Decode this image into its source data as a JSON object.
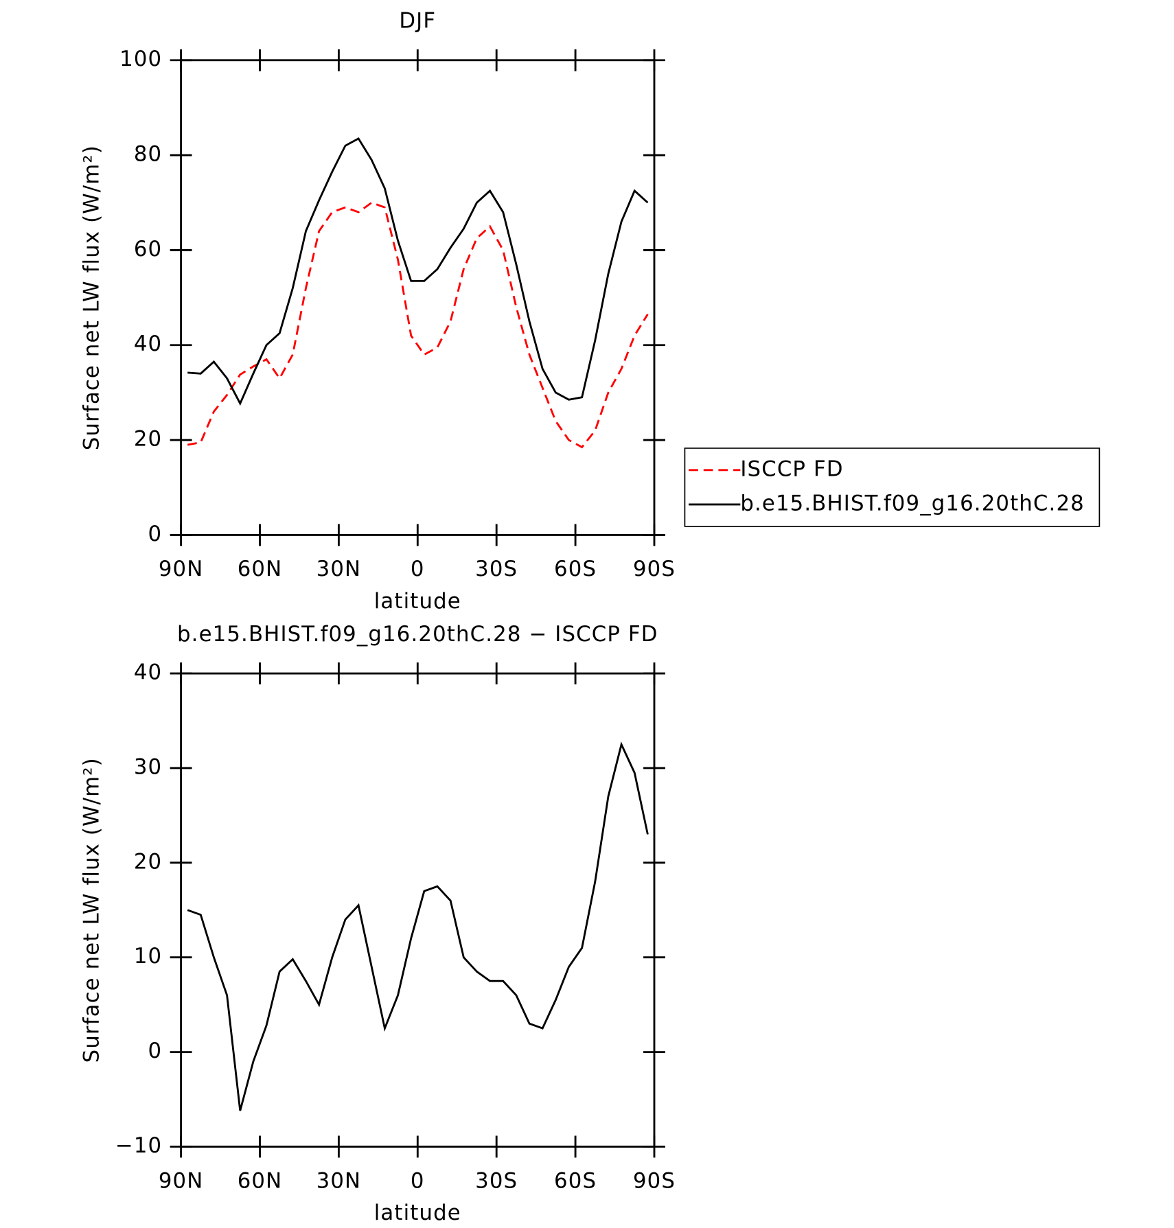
{
  "chart_data": [
    {
      "type": "line",
      "title": "DJF",
      "xlabel": "latitude",
      "ylabel": "Surface net LW flux (W/m²)",
      "x": [
        87.5,
        82.5,
        77.5,
        72.5,
        67.5,
        62.5,
        57.5,
        52.5,
        47.5,
        42.5,
        37.5,
        32.5,
        27.5,
        22.5,
        17.5,
        12.5,
        7.5,
        2.5,
        -2.5,
        -7.5,
        -12.5,
        -17.5,
        -22.5,
        -27.5,
        -32.5,
        -37.5,
        -42.5,
        -47.5,
        -52.5,
        -57.5,
        -62.5,
        -67.5,
        -72.5,
        -77.5,
        -82.5,
        -87.5
      ],
      "series": [
        {
          "name": "ISCCP FD",
          "color": "#ff0000",
          "style": "dashed",
          "values": [
            19,
            19.5,
            26,
            29.5,
            33.8,
            35.5,
            37,
            33,
            38,
            52,
            64,
            68,
            69,
            68,
            70,
            69,
            58,
            42,
            38,
            39.5,
            45,
            56,
            62.5,
            65,
            60,
            48,
            38,
            31,
            24,
            20,
            18.5,
            22,
            30,
            35,
            42,
            46.5
          ]
        },
        {
          "name": "b.e15.BHIST.f09_g16.20thC.28",
          "color": "#000000",
          "style": "solid",
          "values": [
            34.2,
            34,
            36.5,
            33,
            27.7,
            34,
            40,
            42.5,
            52,
            64,
            70.5,
            76.5,
            82,
            83.5,
            79,
            73,
            62,
            53.5,
            53.5,
            56,
            60.5,
            64.5,
            70,
            72.5,
            68,
            57,
            45,
            35,
            30,
            28.5,
            29,
            41,
            55,
            66,
            72.5,
            70
          ]
        }
      ],
      "xlim": [
        90,
        -90
      ],
      "xticks": [
        {
          "value": 90,
          "label": "90N"
        },
        {
          "value": 60,
          "label": "60N"
        },
        {
          "value": 30,
          "label": "30N"
        },
        0,
        {
          "value": -30,
          "label": "30S"
        },
        {
          "value": -60,
          "label": "60S"
        },
        {
          "value": -90,
          "label": "90S"
        }
      ],
      "ylim": [
        0,
        100
      ],
      "yticks": [
        0,
        20,
        40,
        60,
        80,
        100
      ],
      "legend": "right"
    },
    {
      "type": "line",
      "title": "b.e15.BHIST.f09_g16.20thC.28 − ISCCP FD",
      "xlabel": "latitude",
      "ylabel": "Surface net LW flux (W/m²)",
      "x": [
        87.5,
        82.5,
        77.5,
        72.5,
        67.5,
        62.5,
        57.5,
        52.5,
        47.5,
        42.5,
        37.5,
        32.5,
        27.5,
        22.5,
        17.5,
        12.5,
        7.5,
        2.5,
        -2.5,
        -7.5,
        -12.5,
        -17.5,
        -22.5,
        -27.5,
        -32.5,
        -37.5,
        -42.5,
        -47.5,
        -52.5,
        -57.5,
        -62.5,
        -67.5,
        -72.5,
        -77.5,
        -82.5,
        -87.5
      ],
      "series": [
        {
          "color": "#000000",
          "style": "solid",
          "values": [
            15,
            14.5,
            10,
            6,
            -6.2,
            -1,
            2.8,
            8.5,
            9.8,
            7.5,
            5,
            10,
            14,
            15.5,
            9,
            2.5,
            6,
            12,
            17,
            17.5,
            16,
            10,
            8.5,
            7.5,
            7.5,
            6,
            3,
            2.5,
            5.5,
            9,
            11,
            18,
            27,
            32.5,
            29.5,
            23
          ]
        }
      ],
      "xlim": [
        90,
        -90
      ],
      "xticks": [
        {
          "value": 90,
          "label": "90N"
        },
        {
          "value": 60,
          "label": "60N"
        },
        {
          "value": 30,
          "label": "30N"
        },
        0,
        {
          "value": -30,
          "label": "30S"
        },
        {
          "value": -60,
          "label": "60S"
        },
        {
          "value": -90,
          "label": "90S"
        }
      ],
      "ylim": [
        -10,
        40
      ],
      "yticks": [
        {
          "value": -10,
          "label": "−10"
        },
        0,
        10,
        20,
        30,
        40
      ]
    }
  ]
}
